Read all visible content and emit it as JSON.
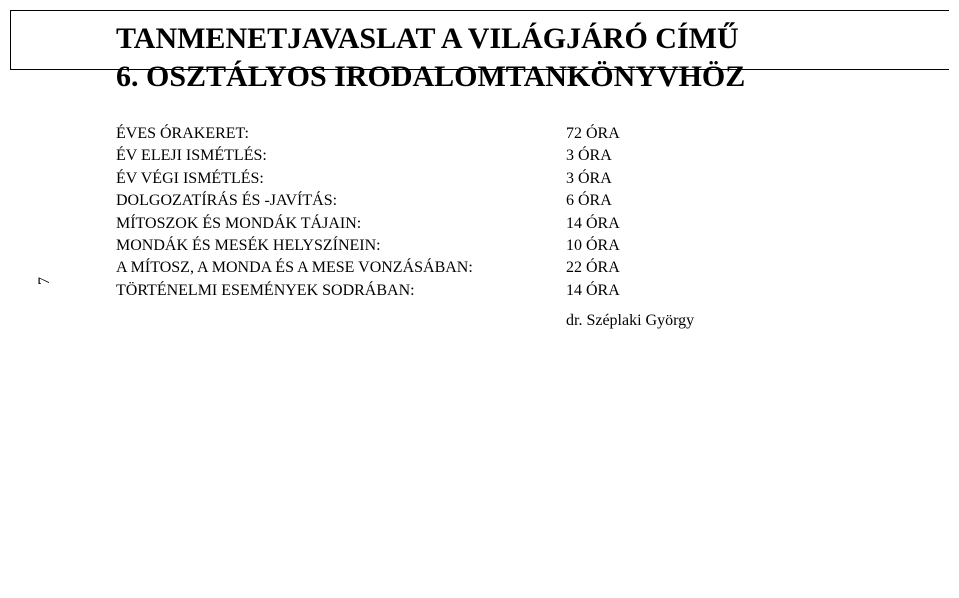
{
  "page_number": "7",
  "title_line1": "TANMENETJAVASLAT A VILÁGJÁRÓ CÍMŰ",
  "title_line2": "6. OSZTÁLYOS IRODALOMTANKÖNYVHÖZ",
  "rows": [
    {
      "label": "ÉVES ÓRAKERET:",
      "value": "72 ÓRA"
    },
    {
      "label": "ÉV ELEJI ISMÉTLÉS:",
      "value": "3 ÓRA"
    },
    {
      "label": "ÉV VÉGI ISMÉTLÉS:",
      "value": "3 ÓRA"
    },
    {
      "label": "DOLGOZATÍRÁS ÉS -JAVÍTÁS:",
      "value": "6 ÓRA"
    },
    {
      "label": "MÍTOSZOK ÉS MONDÁK TÁJAIN:",
      "value": "14 ÓRA"
    },
    {
      "label": "MONDÁK ÉS MESÉK HELYSZÍNEIN:",
      "value": "10 ÓRA"
    },
    {
      "label": "A MÍTOSZ, A MONDA ÉS A MESE VONZÁSÁBAN:",
      "value": "22 ÓRA"
    },
    {
      "label": "TÖRTÉNELMI ESEMÉNYEK SODRÁBAN:",
      "value": "14 ÓRA"
    }
  ],
  "author": "dr. Széplaki György",
  "colors": {
    "text": "#000000",
    "background": "#ffffff",
    "border": "#000000"
  },
  "fontsizes": {
    "title": 30,
    "body": 16,
    "page_number": 16
  }
}
